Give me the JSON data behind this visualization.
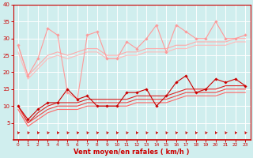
{
  "background_color": "#d0eeee",
  "grid_color": "#ffffff",
  "xlabel": "Vent moyen/en rafales ( km/h )",
  "xlabel_color": "#cc0000",
  "tick_color": "#cc0000",
  "xlim": [
    -0.5,
    23.5
  ],
  "ylim": [
    0,
    40
  ],
  "yticks": [
    5,
    10,
    15,
    20,
    25,
    30,
    35,
    40
  ],
  "xticks": [
    0,
    1,
    2,
    3,
    4,
    5,
    6,
    7,
    8,
    9,
    10,
    11,
    12,
    13,
    14,
    15,
    16,
    17,
    18,
    19,
    20,
    21,
    22,
    23
  ],
  "lines": [
    {
      "x": [
        0,
        1,
        2,
        3,
        4,
        5,
        6,
        7,
        8,
        9,
        10,
        11,
        12,
        13,
        14,
        15,
        16,
        17,
        18,
        19,
        20,
        21,
        22,
        23
      ],
      "y": [
        28,
        19,
        24,
        33,
        31,
        14,
        12,
        31,
        32,
        24,
        24,
        29,
        27,
        30,
        34,
        26,
        34,
        32,
        30,
        30,
        35,
        30,
        30,
        31
      ],
      "color": "#ff9999",
      "lw": 0.8,
      "marker": "D",
      "ms": 1.8
    },
    {
      "x": [
        0,
        1,
        2,
        3,
        4,
        5,
        6,
        7,
        8,
        9,
        10,
        11,
        12,
        13,
        14,
        15,
        16,
        17,
        18,
        19,
        20,
        21,
        22,
        23
      ],
      "y": [
        28,
        19,
        22,
        25,
        26,
        25,
        26,
        27,
        27,
        25,
        25,
        26,
        26,
        27,
        27,
        27,
        28,
        28,
        29,
        29,
        29,
        29,
        30,
        30
      ],
      "color": "#ffaaaa",
      "lw": 0.8,
      "marker": null,
      "ms": 0
    },
    {
      "x": [
        0,
        1,
        2,
        3,
        4,
        5,
        6,
        7,
        8,
        9,
        10,
        11,
        12,
        13,
        14,
        15,
        16,
        17,
        18,
        19,
        20,
        21,
        22,
        23
      ],
      "y": [
        26,
        18,
        21,
        24,
        25,
        24,
        25,
        26,
        26,
        24,
        24,
        25,
        25,
        26,
        26,
        26,
        27,
        27,
        28,
        28,
        28,
        28,
        29,
        29
      ],
      "color": "#ffbbbb",
      "lw": 0.8,
      "marker": null,
      "ms": 0
    },
    {
      "x": [
        0,
        1,
        2,
        3,
        4,
        5,
        6,
        7,
        8,
        9,
        10,
        11,
        12,
        13,
        14,
        15,
        16,
        17,
        18,
        19,
        20,
        21,
        22,
        23
      ],
      "y": [
        10,
        6,
        9,
        11,
        11,
        15,
        12,
        13,
        10,
        10,
        10,
        14,
        14,
        15,
        10,
        13,
        17,
        19,
        14,
        15,
        18,
        17,
        18,
        16
      ],
      "color": "#cc0000",
      "lw": 0.8,
      "marker": "D",
      "ms": 1.8
    },
    {
      "x": [
        0,
        1,
        2,
        3,
        4,
        5,
        6,
        7,
        8,
        9,
        10,
        11,
        12,
        13,
        14,
        15,
        16,
        17,
        18,
        19,
        20,
        21,
        22,
        23
      ],
      "y": [
        10,
        5,
        8,
        10,
        11,
        11,
        11,
        12,
        12,
        12,
        12,
        12,
        13,
        13,
        13,
        13,
        14,
        15,
        15,
        15,
        15,
        16,
        16,
        16
      ],
      "color": "#dd2222",
      "lw": 0.8,
      "marker": null,
      "ms": 0
    },
    {
      "x": [
        0,
        1,
        2,
        3,
        4,
        5,
        6,
        7,
        8,
        9,
        10,
        11,
        12,
        13,
        14,
        15,
        16,
        17,
        18,
        19,
        20,
        21,
        22,
        23
      ],
      "y": [
        10,
        5,
        7,
        9,
        10,
        10,
        10,
        11,
        11,
        11,
        11,
        11,
        12,
        12,
        12,
        12,
        13,
        14,
        14,
        14,
        14,
        15,
        15,
        15
      ],
      "color": "#ee4444",
      "lw": 0.8,
      "marker": null,
      "ms": 0
    },
    {
      "x": [
        0,
        1,
        2,
        3,
        4,
        5,
        6,
        7,
        8,
        9,
        10,
        11,
        12,
        13,
        14,
        15,
        16,
        17,
        18,
        19,
        20,
        21,
        22,
        23
      ],
      "y": [
        9,
        4,
        6,
        8,
        9,
        9,
        9,
        10,
        10,
        10,
        10,
        10,
        11,
        11,
        11,
        11,
        12,
        13,
        13,
        13,
        13,
        14,
        14,
        14
      ],
      "color": "#ff6666",
      "lw": 0.8,
      "marker": null,
      "ms": 0
    }
  ],
  "arrow_color": "#cc0000",
  "spine_color": "#cc0000",
  "xlabel_fontsize": 6.0,
  "xlabel_fontweight": "bold",
  "xtick_fontsize": 4.2,
  "ytick_fontsize": 5.0
}
